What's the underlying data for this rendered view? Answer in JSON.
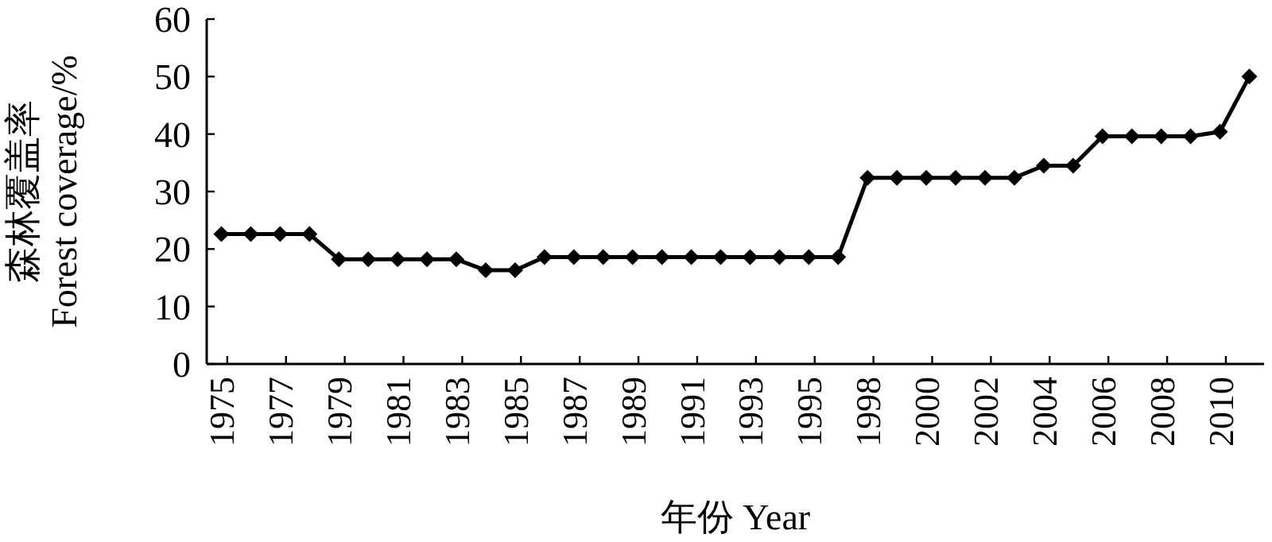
{
  "chart_data": {
    "type": "line",
    "xlabel": "年份 Year",
    "ylabel": "森林覆盖率 Forest coverage/%",
    "categories": [
      "1975",
      null,
      "1977",
      null,
      "1979",
      null,
      "1981",
      null,
      "1983",
      null,
      "1985",
      null,
      "1987",
      null,
      "1989",
      null,
      "1991",
      null,
      "1993",
      null,
      "1995",
      null,
      "1998",
      null,
      "2000",
      null,
      "2002",
      null,
      "2004",
      null,
      "2006",
      null,
      "2008",
      null,
      "2010",
      null
    ],
    "series": [
      {
        "color": "#000000",
        "values": [
          22.6,
          22.6,
          22.6,
          22.6,
          18.2,
          18.2,
          18.2,
          18.2,
          18.2,
          16.3,
          16.3,
          18.6,
          18.6,
          18.6,
          18.6,
          18.6,
          18.6,
          18.6,
          18.6,
          18.6,
          18.6,
          18.6,
          32.4,
          32.4,
          32.4,
          32.4,
          32.4,
          32.4,
          34.5,
          34.5,
          39.6,
          39.6,
          39.6,
          39.6,
          40.4,
          50
        ]
      }
    ],
    "ylim": [
      0,
      60
    ],
    "yticks": [
      0,
      10,
      20,
      30,
      40,
      50,
      60
    ],
    "marker": "diamond",
    "line_style": "solid"
  }
}
